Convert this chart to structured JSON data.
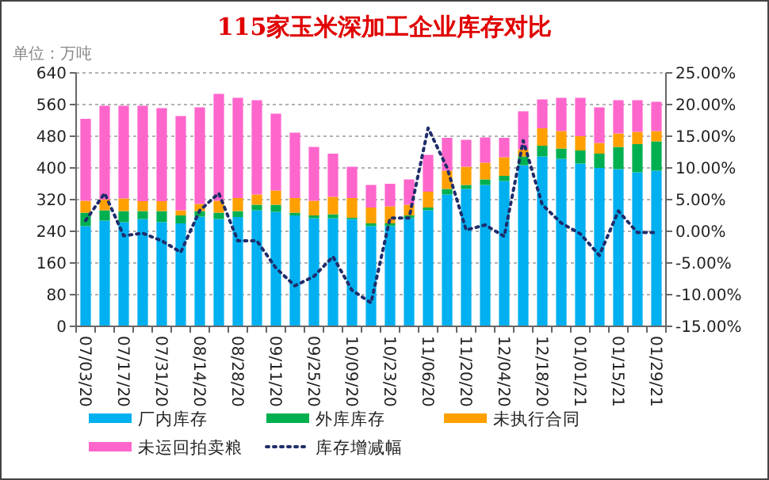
{
  "chart_data": {
    "type": "bar",
    "title": "115家玉米深加工企业库存对比",
    "annotations": [
      "单位：万吨"
    ],
    "categories": [
      "07/03/20",
      null,
      "07/17/20",
      null,
      "07/31/20",
      null,
      "08/14/20",
      null,
      "08/28/20",
      null,
      "09/11/20",
      null,
      "09/25/20",
      null,
      "10/09/20",
      null,
      "10/23/20",
      null,
      "11/06/20",
      null,
      "11/20/20",
      null,
      "12/04/20",
      null,
      "12/18/20",
      null,
      "01/01/21",
      null,
      "01/15/21",
      null,
      "01/29/21"
    ],
    "stacked": true,
    "series": [
      {
        "name": "厂内库存",
        "color": "#00b0f0",
        "values": [
          253,
          267,
          263,
          271,
          263,
          260,
          277,
          271,
          276,
          293,
          289,
          280,
          273,
          273,
          271,
          253,
          253,
          273,
          293,
          333,
          347,
          357,
          367,
          407,
          429,
          423,
          411,
          400,
          397,
          389,
          393
        ]
      },
      {
        "name": "外库库存",
        "color": "#00b050",
        "values": [
          34,
          26,
          28,
          20,
          28,
          20,
          14,
          16,
          15,
          14,
          18,
          7,
          7,
          10,
          3,
          7,
          7,
          7,
          7,
          14,
          10,
          14,
          13,
          22,
          27,
          26,
          33,
          36,
          56,
          71,
          74
        ]
      },
      {
        "name": "未执行合同",
        "color": "#ffa000",
        "values": [
          30,
          27,
          32,
          25,
          25,
          13,
          18,
          30,
          33,
          26,
          36,
          37,
          37,
          44,
          50,
          40,
          43,
          27,
          40,
          46,
          46,
          42,
          47,
          18,
          44,
          44,
          36,
          27,
          34,
          31,
          26
        ]
      },
      {
        "name": "未运回拍卖粮",
        "color": "#ff66cc",
        "values": [
          207,
          237,
          234,
          241,
          235,
          238,
          244,
          270,
          253,
          238,
          194,
          165,
          136,
          109,
          79,
          57,
          57,
          64,
          93,
          83,
          68,
          64,
          49,
          96,
          73,
          84,
          97,
          90,
          84,
          80,
          74
        ]
      },
      {
        "name": "库存增减幅",
        "type": "line",
        "axis": "y2",
        "line_style": "dotted",
        "color": "#1f2d6b",
        "values": [
          1.7,
          6.0,
          -0.7,
          -0.3,
          -1.5,
          -3.3,
          3.3,
          6.0,
          -1.5,
          -1.5,
          -5.8,
          -8.6,
          -7.1,
          -4.0,
          -9.3,
          -11.3,
          2.1,
          2.1,
          16.3,
          10.0,
          0.2,
          1.0,
          -0.8,
          14.3,
          4.2,
          1.3,
          -0.4,
          -3.8,
          3.2,
          -0.2,
          -0.2
        ]
      }
    ],
    "ylim": [
      0,
      640
    ],
    "yticks": [
      0,
      80,
      160,
      240,
      320,
      400,
      480,
      560,
      640
    ],
    "y2lim": [
      -15,
      25
    ],
    "y2ticks": [
      {
        "value": -15,
        "label": "-15.00%"
      },
      {
        "value": -10,
        "label": "-10.00%"
      },
      {
        "value": -5,
        "label": "-5.00%"
      },
      {
        "value": 0,
        "label": "0.00%"
      },
      {
        "value": 5,
        "label": "5.00%"
      },
      {
        "value": 10,
        "label": "10.00%"
      },
      {
        "value": 15,
        "label": "15.00%"
      },
      {
        "value": 20,
        "label": "20.00%"
      },
      {
        "value": 25,
        "label": "25.00%"
      }
    ],
    "grid": "y",
    "legend": "bottom"
  }
}
